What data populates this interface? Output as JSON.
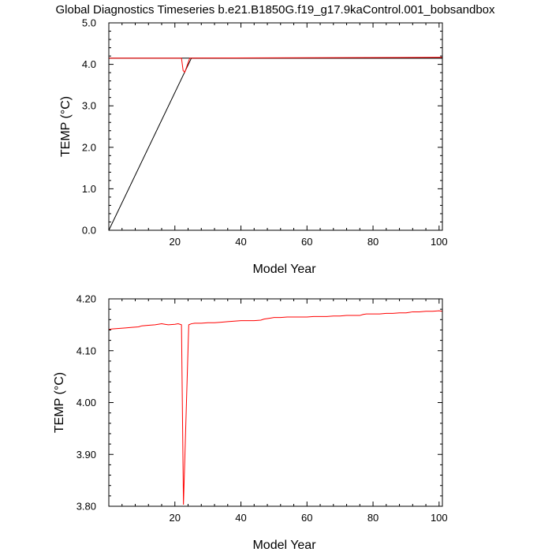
{
  "figure": {
    "title": "Global Diagnostics Timeseries b.e21.B1850G.f19_g17.9kaControl.001_bobsandbox"
  },
  "chart_data": [
    {
      "type": "line",
      "title": "",
      "xlabel": "Model Year",
      "ylabel": "TEMP (°C)",
      "xlim": [
        0,
        101
      ],
      "ylim": [
        0.0,
        5.0
      ],
      "x_ticks": [
        20,
        40,
        60,
        80,
        100
      ],
      "x_tick_labels": [
        "20",
        "40",
        "60",
        "80",
        "100"
      ],
      "y_ticks": [
        0.0,
        1.0,
        2.0,
        3.0,
        4.0,
        5.0
      ],
      "y_tick_labels": [
        "0.0",
        "1.0",
        "2.0",
        "3.0",
        "4.0",
        "5.0"
      ],
      "series": [
        {
          "color": "#000000",
          "x": [
            0,
            25,
            101
          ],
          "y": [
            0.0,
            4.15,
            4.15
          ]
        },
        {
          "color": "#000000",
          "x": [
            0,
            101
          ],
          "y": [
            4.15,
            4.15
          ]
        },
        {
          "color": "#ff0000",
          "x": [
            0,
            22,
            22.5,
            23,
            24.5,
            25,
            101
          ],
          "y": [
            4.15,
            4.15,
            3.85,
            3.81,
            4.15,
            4.15,
            4.17
          ]
        }
      ]
    },
    {
      "type": "line",
      "title": "",
      "xlabel": "Model Year",
      "ylabel": "TEMP (°C)",
      "xlim": [
        0,
        101
      ],
      "ylim": [
        3.8,
        4.2
      ],
      "x_ticks": [
        20,
        40,
        60,
        80,
        100
      ],
      "x_tick_labels": [
        "20",
        "40",
        "60",
        "80",
        "100"
      ],
      "y_ticks": [
        3.8,
        3.9,
        4.0,
        4.1,
        4.2
      ],
      "y_tick_labels": [
        "3.80",
        "3.90",
        "4.00",
        "4.10",
        "4.20"
      ],
      "series": [
        {
          "color": "#ff0000",
          "x": [
            0,
            1,
            3,
            5,
            7,
            9,
            10,
            12,
            14,
            16,
            17,
            18,
            20,
            21,
            22,
            22.6,
            24.2,
            25,
            26,
            28,
            30,
            32,
            34,
            36,
            38,
            40,
            42,
            44,
            46,
            47,
            48,
            49,
            50,
            52,
            54,
            56,
            58,
            60,
            62,
            64,
            66,
            68,
            70,
            72,
            74,
            76,
            77,
            78,
            80,
            82,
            84,
            86,
            88,
            90,
            91,
            92,
            94,
            96,
            98,
            100,
            101
          ],
          "y": [
            4.141,
            4.142,
            4.143,
            4.144,
            4.145,
            4.146,
            4.148,
            4.149,
            4.15,
            4.152,
            4.151,
            4.15,
            4.151,
            4.152,
            4.15,
            3.803,
            4.15,
            4.152,
            4.153,
            4.153,
            4.154,
            4.154,
            4.155,
            4.156,
            4.157,
            4.158,
            4.158,
            4.158,
            4.159,
            4.161,
            4.162,
            4.163,
            4.164,
            4.164,
            4.165,
            4.165,
            4.165,
            4.165,
            4.166,
            4.166,
            4.166,
            4.167,
            4.167,
            4.168,
            4.168,
            4.168,
            4.17,
            4.171,
            4.171,
            4.171,
            4.172,
            4.172,
            4.173,
            4.173,
            4.174,
            4.175,
            4.175,
            4.176,
            4.176,
            4.177,
            4.176
          ]
        }
      ]
    }
  ]
}
